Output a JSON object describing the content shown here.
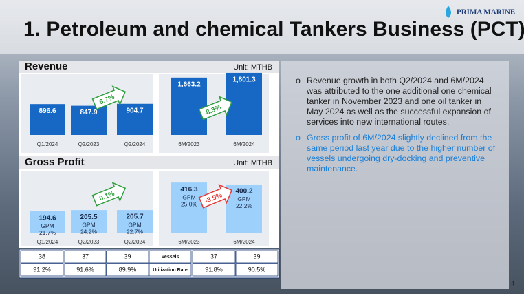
{
  "header": {
    "title": "1. Petroleum and chemical Tankers Business (PCT)",
    "logo": "PRIMA MARINE"
  },
  "chart_data": [
    {
      "type": "bar",
      "title": "Revenue",
      "unit": "Unit: MTHB",
      "categories": [
        "Q1/2024",
        "Q2/2023",
        "Q2/2024"
      ],
      "values": [
        896.6,
        847.9,
        904.7
      ],
      "color": "#1668c4",
      "annotation": "6.7%",
      "annotation_color": "#2e9e3e"
    },
    {
      "type": "bar",
      "categories": [
        "6M/2023",
        "6M/2024"
      ],
      "values": [
        1663.2,
        1801.3
      ],
      "value_labels": [
        "1,663.2",
        "1,801.3"
      ],
      "color": "#1668c4",
      "annotation": "8.3%",
      "annotation_color": "#2e9e3e"
    },
    {
      "type": "bar",
      "title": "Gross Profit",
      "unit": "Unit: MTHB",
      "categories": [
        "Q1/2024",
        "Q2/2023",
        "Q2/2024"
      ],
      "values": [
        194.6,
        205.5,
        205.7
      ],
      "color": "#9dd0fb",
      "gpm": {
        "name": "GPM",
        "values": [
          21.7,
          24.2,
          22.7
        ],
        "value_labels": [
          "21.7%",
          "24.2%",
          "22.7%"
        ]
      },
      "annotation": "0.1%",
      "annotation_color": "#2e9e3e"
    },
    {
      "type": "bar",
      "categories": [
        "6M/2023",
        "6M/2024"
      ],
      "values": [
        416.3,
        400.2
      ],
      "color": "#9dd0fb",
      "gpm": {
        "name": "GPM",
        "values": [
          25.0,
          22.2
        ],
        "value_labels": [
          "25.0%",
          "22.2%"
        ]
      },
      "annotation": "-3.9%",
      "annotation_color": "#e53935"
    }
  ],
  "table": {
    "rows": [
      [
        38,
        37,
        39,
        "Vessels",
        37,
        39
      ],
      [
        "91.2%",
        "91.6%",
        "89.9%",
        "Utilization Rate",
        "91.8%",
        "90.5%"
      ]
    ]
  },
  "bullets": [
    "Revenue growth in both Q2/2024 and 6M/2024 was attributed to the one additional one chemical tanker in November 2023 and one oil tanker in May 2024 as well as the successful expansion of services into new international routes.",
    "Gross profit of 6M/2024 slightly declined from the same period last year due to the higher number of vessels undergoing dry-docking and preventive maintenance."
  ],
  "page_number": 4
}
